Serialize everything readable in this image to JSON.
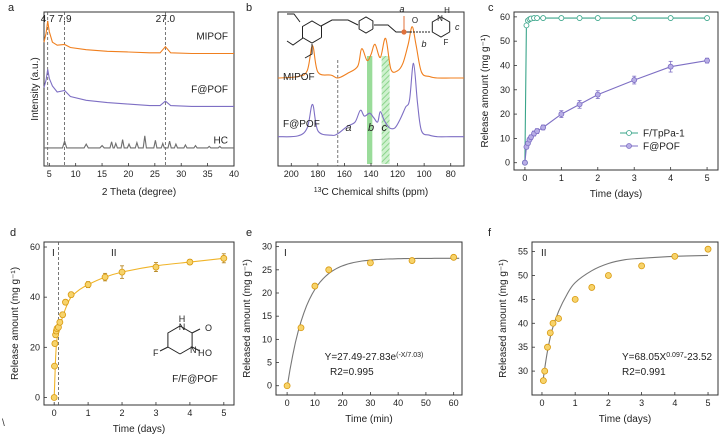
{
  "stray_mark": "\\",
  "chart_data": [
    {
      "panel": "a",
      "type": "line",
      "xlabel": "2 Theta (degree)",
      "ylabel": "Intensity (a.u.)",
      "xlim": [
        4,
        40
      ],
      "xticks": [
        5,
        10,
        15,
        20,
        25,
        30,
        35,
        40
      ],
      "y_ticks_shown": false,
      "reference_lines": [
        {
          "x": 4.7,
          "label": "4.7"
        },
        {
          "x": 7.9,
          "label": "7.9"
        },
        {
          "x": 27.0,
          "label": "27.0"
        }
      ],
      "series": [
        {
          "name": "MIPOF",
          "color": "#f07f1e",
          "points": [
            [
              4,
              8.2
            ],
            [
              4.4,
              8.8
            ],
            [
              4.7,
              9.6
            ],
            [
              5.0,
              8.9
            ],
            [
              5.6,
              8.2
            ],
            [
              6.5,
              8.0
            ],
            [
              7.9,
              8.05
            ],
            [
              9,
              7.85
            ],
            [
              12,
              7.7
            ],
            [
              16,
              7.6
            ],
            [
              20,
              7.55
            ],
            [
              24,
              7.5
            ],
            [
              26,
              7.5
            ],
            [
              27,
              7.9
            ],
            [
              28,
              7.5
            ],
            [
              32,
              7.45
            ],
            [
              36,
              7.45
            ],
            [
              40,
              7.45
            ]
          ]
        },
        {
          "name": "F@POF",
          "color": "#7e6fc4",
          "points": [
            [
              4,
              5.2
            ],
            [
              4.4,
              5.7
            ],
            [
              4.7,
              6.4
            ],
            [
              5.0,
              5.8
            ],
            [
              5.6,
              5.3
            ],
            [
              6.5,
              4.9
            ],
            [
              7.9,
              5.0
            ],
            [
              9,
              4.6
            ],
            [
              12,
              4.35
            ],
            [
              16,
              4.2
            ],
            [
              20,
              4.1
            ],
            [
              24,
              4.0
            ],
            [
              26,
              4.0
            ],
            [
              27,
              4.3
            ],
            [
              28,
              4.0
            ],
            [
              32,
              3.95
            ],
            [
              36,
              3.95
            ],
            [
              40,
              3.95
            ]
          ]
        },
        {
          "name": "HC",
          "color": "#6e6e6e",
          "points": [
            [
              4,
              1.2
            ],
            [
              7.5,
              1.2
            ],
            [
              7.9,
              1.65
            ],
            [
              8.3,
              1.2
            ],
            [
              11.6,
              1.2
            ],
            [
              12,
              1.45
            ],
            [
              12.4,
              1.2
            ],
            [
              14.6,
              1.2
            ],
            [
              15,
              1.35
            ],
            [
              15.4,
              1.2
            ],
            [
              16.5,
              1.2
            ],
            [
              16.8,
              1.6
            ],
            [
              17.1,
              1.2
            ],
            [
              17.3,
              1.2
            ],
            [
              17.6,
              1.5
            ],
            [
              17.9,
              1.2
            ],
            [
              18.6,
              1.2
            ],
            [
              18.9,
              1.75
            ],
            [
              19.2,
              1.2
            ],
            [
              19.8,
              1.2
            ],
            [
              20.1,
              1.45
            ],
            [
              20.4,
              1.2
            ],
            [
              21.3,
              1.2
            ],
            [
              21.6,
              1.55
            ],
            [
              21.9,
              1.2
            ],
            [
              22.8,
              1.2
            ],
            [
              23.1,
              2.0
            ],
            [
              23.4,
              1.2
            ],
            [
              24.8,
              1.2
            ],
            [
              25.1,
              1.7
            ],
            [
              25.4,
              1.2
            ],
            [
              26.2,
              1.2
            ],
            [
              26.5,
              1.5
            ],
            [
              26.8,
              1.2
            ],
            [
              27.5,
              1.2
            ],
            [
              27.8,
              1.65
            ],
            [
              28.1,
              1.2
            ],
            [
              28.7,
              1.2
            ],
            [
              29,
              1.45
            ],
            [
              29.3,
              1.2
            ],
            [
              30.5,
              1.2
            ],
            [
              30.8,
              1.4
            ],
            [
              31.1,
              1.2
            ],
            [
              32.4,
              1.2
            ],
            [
              32.7,
              1.35
            ],
            [
              33,
              1.2
            ],
            [
              35,
              1.2
            ],
            [
              35.3,
              1.3
            ],
            [
              35.6,
              1.2
            ],
            [
              37,
              1.2
            ],
            [
              37.3,
              1.3
            ],
            [
              37.6,
              1.2
            ],
            [
              40,
              1.2
            ]
          ]
        }
      ]
    },
    {
      "panel": "b",
      "type": "line",
      "xlabel": "13C Chemical shifts (ppm)",
      "xlim": [
        210,
        70
      ],
      "x_reversed": true,
      "xticks": [
        200,
        180,
        160,
        140,
        120,
        100,
        80
      ],
      "y_ticks_shown": false,
      "reference_lines": [
        {
          "x": 165,
          "style": "dashed"
        }
      ],
      "highlight_bands": [
        {
          "from": 143,
          "to": 139,
          "color": "#8fd88f"
        },
        {
          "from": 132,
          "to": 126,
          "color": "#8fd88f",
          "hatched": true
        }
      ],
      "peak_labels": [
        {
          "text": "a",
          "x": 157
        },
        {
          "text": "b",
          "x": 140
        },
        {
          "text": "c",
          "x": 130
        }
      ],
      "structure_labels": [
        "a",
        "b",
        "c",
        "H",
        "N",
        "O",
        "F"
      ],
      "series": [
        {
          "name": "MIPOF",
          "color": "#f07f1e",
          "points": [
            [
              210,
              6.0
            ],
            [
              195,
              6.1
            ],
            [
              188,
              6.5
            ],
            [
              184,
              8.2
            ],
            [
              180,
              6.4
            ],
            [
              170,
              6.2
            ],
            [
              165,
              6.0
            ],
            [
              158,
              6.3
            ],
            [
              150,
              6.8
            ],
            [
              147,
              8.0
            ],
            [
              143,
              7.2
            ],
            [
              140,
              7.6
            ],
            [
              137,
              8.3
            ],
            [
              133,
              7.4
            ],
            [
              129,
              8.7
            ],
            [
              125,
              6.6
            ],
            [
              120,
              6.5
            ],
            [
              116,
              7.0
            ],
            [
              112,
              8.3
            ],
            [
              109,
              9.5
            ],
            [
              106,
              8.2
            ],
            [
              102,
              6.4
            ],
            [
              96,
              6.1
            ],
            [
              90,
              6.0
            ],
            [
              80,
              6.0
            ],
            [
              70,
              6.0
            ]
          ]
        },
        {
          "name": "F@POF",
          "color": "#7e6fc4",
          "points": [
            [
              210,
              2.0
            ],
            [
              195,
              2.05
            ],
            [
              188,
              2.6
            ],
            [
              184,
              4.2
            ],
            [
              180,
              2.4
            ],
            [
              170,
              2.1
            ],
            [
              165,
              2.2
            ],
            [
              158,
              2.7
            ],
            [
              152,
              3.0
            ],
            [
              148,
              3.8
            ],
            [
              145,
              3.4
            ],
            [
              141,
              3.6
            ],
            [
              138,
              3.3
            ],
            [
              135,
              3.0
            ],
            [
              133,
              3.7
            ],
            [
              130,
              3.1
            ],
            [
              126,
              2.6
            ],
            [
              122,
              2.6
            ],
            [
              118,
              3.2
            ],
            [
              114,
              4.0
            ],
            [
              111,
              4.5
            ],
            [
              108,
              7.0
            ],
            [
              105,
              4.3
            ],
            [
              102,
              2.4
            ],
            [
              96,
              2.1
            ],
            [
              90,
              2.0
            ],
            [
              80,
              2.0
            ],
            [
              70,
              2.0
            ]
          ]
        }
      ]
    },
    {
      "panel": "c",
      "type": "line",
      "xlabel": "Time (days)",
      "ylabel": "Release amount (mg g⁻¹)",
      "xlim": [
        -0.3,
        5.3
      ],
      "ylim": [
        -3,
        62
      ],
      "xticks": [
        0,
        1,
        2,
        3,
        4,
        5
      ],
      "yticks": [
        0,
        10,
        20,
        30,
        40,
        50,
        60
      ],
      "legend": "bottom-right",
      "series": [
        {
          "name": "F/TpPa-1",
          "color": "#3aa58a",
          "marker": "open-circle",
          "x": [
            0,
            0.0417,
            0.0833,
            0.125,
            0.167,
            0.25,
            0.333,
            0.5,
            1,
            1.5,
            2,
            3,
            4,
            5
          ],
          "y": [
            0,
            56.5,
            58.5,
            59,
            59.3,
            59.5,
            59.5,
            59.5,
            59.5,
            59.5,
            59.5,
            59.5,
            59.5,
            59.5
          ]
        },
        {
          "name": "F@POF",
          "color": "#7e6fc4",
          "marker": "filled-circle",
          "x": [
            0,
            0.0417,
            0.0833,
            0.125,
            0.167,
            0.25,
            0.333,
            0.5,
            1,
            1.5,
            2,
            3,
            4,
            5
          ],
          "y": [
            0,
            6.5,
            8,
            9.5,
            10.5,
            12,
            13,
            14.5,
            20,
            24,
            28,
            34,
            39.5,
            42
          ],
          "err": [
            0,
            0.8,
            0.8,
            0.9,
            0.9,
            1,
            1,
            1,
            1.4,
            1.6,
            1.6,
            1.6,
            2.2,
            1
          ]
        }
      ]
    },
    {
      "panel": "d",
      "type": "line",
      "xlabel": "Time (days)",
      "ylabel": "Release amount (mg g⁻¹)",
      "xlim": [
        -0.3,
        5.3
      ],
      "ylim": [
        -3,
        62
      ],
      "xticks": [
        0,
        1,
        2,
        3,
        4,
        5
      ],
      "yticks": [
        0,
        20,
        40,
        60
      ],
      "region_labels": [
        "I",
        "II"
      ],
      "reference_lines": [
        {
          "x": 0.125,
          "style": "dashed"
        }
      ],
      "annotation": "F/F@POF",
      "structure_labels": [
        "H",
        "N",
        "O",
        "F"
      ],
      "series": [
        {
          "name": "F/F@POF",
          "color": "#f0b429",
          "marker": "circle",
          "x": [
            0,
            0.0104,
            0.0208,
            0.0417,
            0.0625,
            0.0833,
            0.125,
            0.167,
            0.25,
            0.333,
            0.5,
            1,
            1.5,
            2,
            3,
            4,
            5
          ],
          "y": [
            0,
            12.5,
            21.5,
            25,
            26.5,
            27.5,
            28,
            30,
            33,
            38,
            41,
            45,
            48,
            50,
            52,
            54,
            55.5
          ],
          "err": [
            0,
            0.5,
            0.8,
            1,
            1,
            1,
            1,
            1,
            1,
            1,
            1,
            1.2,
            1.5,
            2.5,
            1.8,
            1,
            1.8
          ],
          "fit": {
            "x": [
              0,
              0.05,
              0.1,
              0.2,
              0.35,
              0.5,
              0.75,
              1,
              1.5,
              2,
              3,
              4,
              5
            ],
            "y": [
              0,
              18,
              25,
              30,
              36,
              40,
              43,
              45,
              48,
              50,
              52.5,
              54,
              55.5
            ]
          }
        }
      ]
    },
    {
      "panel": "e",
      "type": "scatter",
      "xlabel": "Time (min)",
      "ylabel": "Released amount (mg g⁻¹)",
      "xlim": [
        -4,
        63
      ],
      "ylim": [
        -2,
        31
      ],
      "xticks": [
        0,
        10,
        20,
        30,
        40,
        50,
        60
      ],
      "yticks": [
        0,
        5,
        10,
        15,
        20,
        25,
        30
      ],
      "region_label": "I",
      "equation": "Y=27.49-27.83e",
      "equation_superscript": "(-X/7.03)",
      "r2_label": "R",
      "r2_value": "2=0.995",
      "series": [
        {
          "name": "F/F@POF",
          "color": "#f0b429",
          "x": [
            0,
            5,
            10,
            15,
            30,
            45,
            60
          ],
          "y": [
            0,
            12.5,
            21.5,
            25,
            26.5,
            27,
            27.7
          ],
          "fit": {
            "model": "Y=27.49-27.83*exp(-X/7.03)",
            "a": 27.49,
            "b": 27.83,
            "tau": 7.03
          }
        }
      ]
    },
    {
      "panel": "f",
      "type": "scatter",
      "xlabel": "Time (days)",
      "ylabel": "Released amount (mg g⁻¹)",
      "xlim": [
        -0.3,
        5.3
      ],
      "ylim": [
        25,
        57
      ],
      "xticks": [
        0,
        1,
        2,
        3,
        4,
        5
      ],
      "yticks": [
        30,
        35,
        40,
        45,
        50,
        55
      ],
      "region_label": "II",
      "equation": "Y=68.05X",
      "equation_superscript": "0.097",
      "equation_tail": "-23.52",
      "r2_label": "R",
      "r2_value": "2=0.991",
      "series": [
        {
          "name": "F/F@POF",
          "color": "#f0b429",
          "x": [
            0.042,
            0.083,
            0.167,
            0.25,
            0.333,
            0.5,
            1,
            1.5,
            2,
            3,
            4,
            5
          ],
          "y": [
            28,
            30,
            35,
            38,
            40,
            41,
            45,
            47.5,
            50,
            52,
            54,
            55.5
          ],
          "fit": {
            "x": [
              0.03,
              0.15,
              0.3,
              0.5,
              0.75,
              1,
              1.5,
              2,
              2.5,
              3,
              4,
              5
            ],
            "y": [
              28,
              33.5,
              38.5,
              42.5,
              46,
              48.5,
              51,
              52.5,
              53.3,
              53.6,
              54,
              54.2
            ]
          }
        }
      ]
    }
  ]
}
